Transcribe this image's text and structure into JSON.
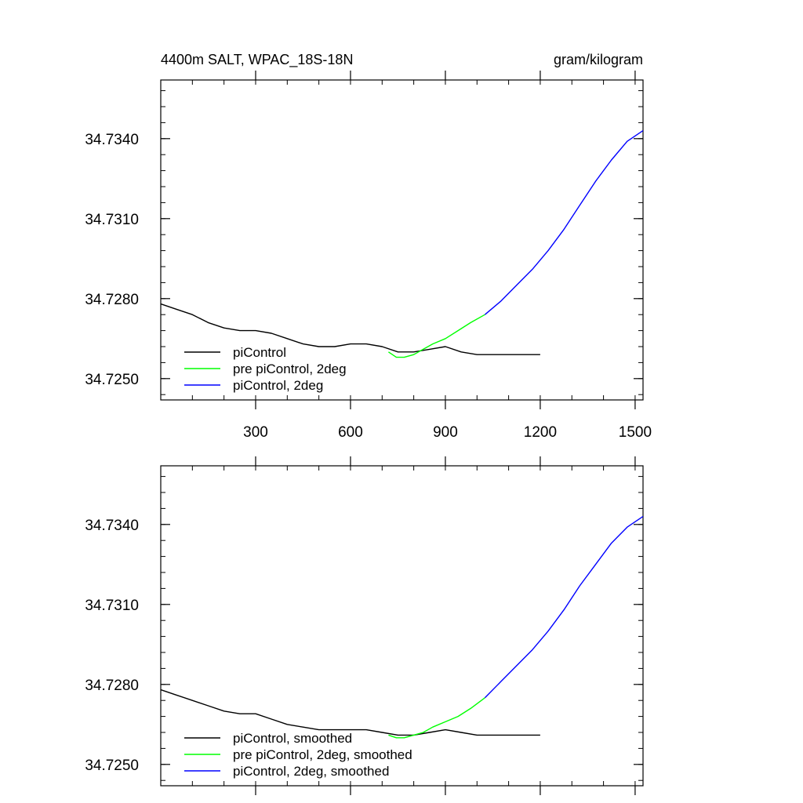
{
  "header": {
    "title": "4400m SALT, WPAC_18S-18N",
    "units": "gram/kilogram"
  },
  "colors": {
    "piControl": "#000000",
    "pre_piControl_2deg": "#00ff00",
    "piControl_2deg": "#0000ff"
  },
  "chart_data": [
    {
      "type": "line",
      "title": "4400m SALT, WPAC_18S-18N",
      "units": "gram/kilogram",
      "xlim": [
        0,
        1525
      ],
      "ylim": [
        34.7242,
        34.7362
      ],
      "x_ticks": [
        300,
        600,
        900,
        1200,
        1500
      ],
      "x_tick_labels": [
        "300",
        "600",
        "900",
        "1200",
        "1500"
      ],
      "y_ticks": [
        34.725,
        34.728,
        34.731,
        34.734
      ],
      "y_tick_labels": [
        "34.7250",
        "34.7280",
        "34.7310",
        "34.7340"
      ],
      "legend_position": "bottom-left",
      "grid": false,
      "series": [
        {
          "name": "piControl",
          "color": "#000000",
          "x": [
            0,
            50,
            100,
            150,
            200,
            250,
            300,
            350,
            400,
            450,
            500,
            550,
            600,
            650,
            700,
            750,
            800,
            850,
            900,
            950,
            1000,
            1050,
            1100,
            1150,
            1200
          ],
          "y": [
            34.7278,
            34.7276,
            34.7274,
            34.7271,
            34.7269,
            34.7268,
            34.7268,
            34.7267,
            34.7265,
            34.7263,
            34.7262,
            34.7262,
            34.7263,
            34.7263,
            34.7262,
            34.726,
            34.726,
            34.7261,
            34.7262,
            34.726,
            34.7259,
            34.7259,
            34.7259,
            34.7259,
            34.7259
          ]
        },
        {
          "name": "pre piControl, 2deg",
          "color": "#00ff00",
          "x": [
            720,
            745,
            770,
            800,
            830,
            860,
            900,
            940,
            980,
            1025
          ],
          "y": [
            34.726,
            34.7258,
            34.7258,
            34.7259,
            34.7261,
            34.7263,
            34.7265,
            34.7268,
            34.7271,
            34.7274
          ]
        },
        {
          "name": "piControl, 2deg",
          "color": "#0000ff",
          "x": [
            1025,
            1075,
            1125,
            1175,
            1225,
            1275,
            1325,
            1375,
            1425,
            1475,
            1525
          ],
          "y": [
            34.7274,
            34.7279,
            34.7285,
            34.7291,
            34.7298,
            34.7306,
            34.7315,
            34.7324,
            34.7332,
            34.7339,
            34.7343
          ]
        }
      ]
    },
    {
      "type": "line",
      "xlim": [
        0,
        1525
      ],
      "ylim": [
        34.7242,
        34.7362
      ],
      "x_ticks": [
        300,
        600,
        900,
        1200,
        1500
      ],
      "x_tick_labels": [],
      "y_ticks": [
        34.725,
        34.728,
        34.731,
        34.734
      ],
      "y_tick_labels": [
        "34.7250",
        "34.7280",
        "34.7310",
        "34.7340"
      ],
      "legend_position": "bottom-left",
      "grid": false,
      "series": [
        {
          "name": "piControl, smoothed",
          "color": "#000000",
          "x": [
            0,
            50,
            100,
            150,
            200,
            250,
            300,
            350,
            400,
            450,
            500,
            550,
            600,
            650,
            700,
            750,
            800,
            850,
            900,
            950,
            1000,
            1050,
            1100,
            1150,
            1200
          ],
          "y": [
            34.7278,
            34.7276,
            34.7274,
            34.7272,
            34.727,
            34.7269,
            34.7269,
            34.7267,
            34.7265,
            34.7264,
            34.7263,
            34.7263,
            34.7263,
            34.7263,
            34.7262,
            34.7261,
            34.7261,
            34.7262,
            34.7263,
            34.7262,
            34.7261,
            34.7261,
            34.7261,
            34.7261,
            34.7261
          ]
        },
        {
          "name": "pre piControl, 2deg, smoothed",
          "color": "#00ff00",
          "x": [
            720,
            745,
            770,
            800,
            830,
            860,
            900,
            940,
            980,
            1025
          ],
          "y": [
            34.7261,
            34.726,
            34.726,
            34.7261,
            34.7262,
            34.7264,
            34.7266,
            34.7268,
            34.7271,
            34.7275
          ]
        },
        {
          "name": "piControl, 2deg, smoothed",
          "color": "#0000ff",
          "x": [
            1025,
            1075,
            1125,
            1175,
            1225,
            1275,
            1325,
            1375,
            1425,
            1475,
            1525
          ],
          "y": [
            34.7275,
            34.7281,
            34.7287,
            34.7293,
            34.73,
            34.7308,
            34.7317,
            34.7325,
            34.7333,
            34.7339,
            34.7343
          ]
        }
      ]
    }
  ]
}
